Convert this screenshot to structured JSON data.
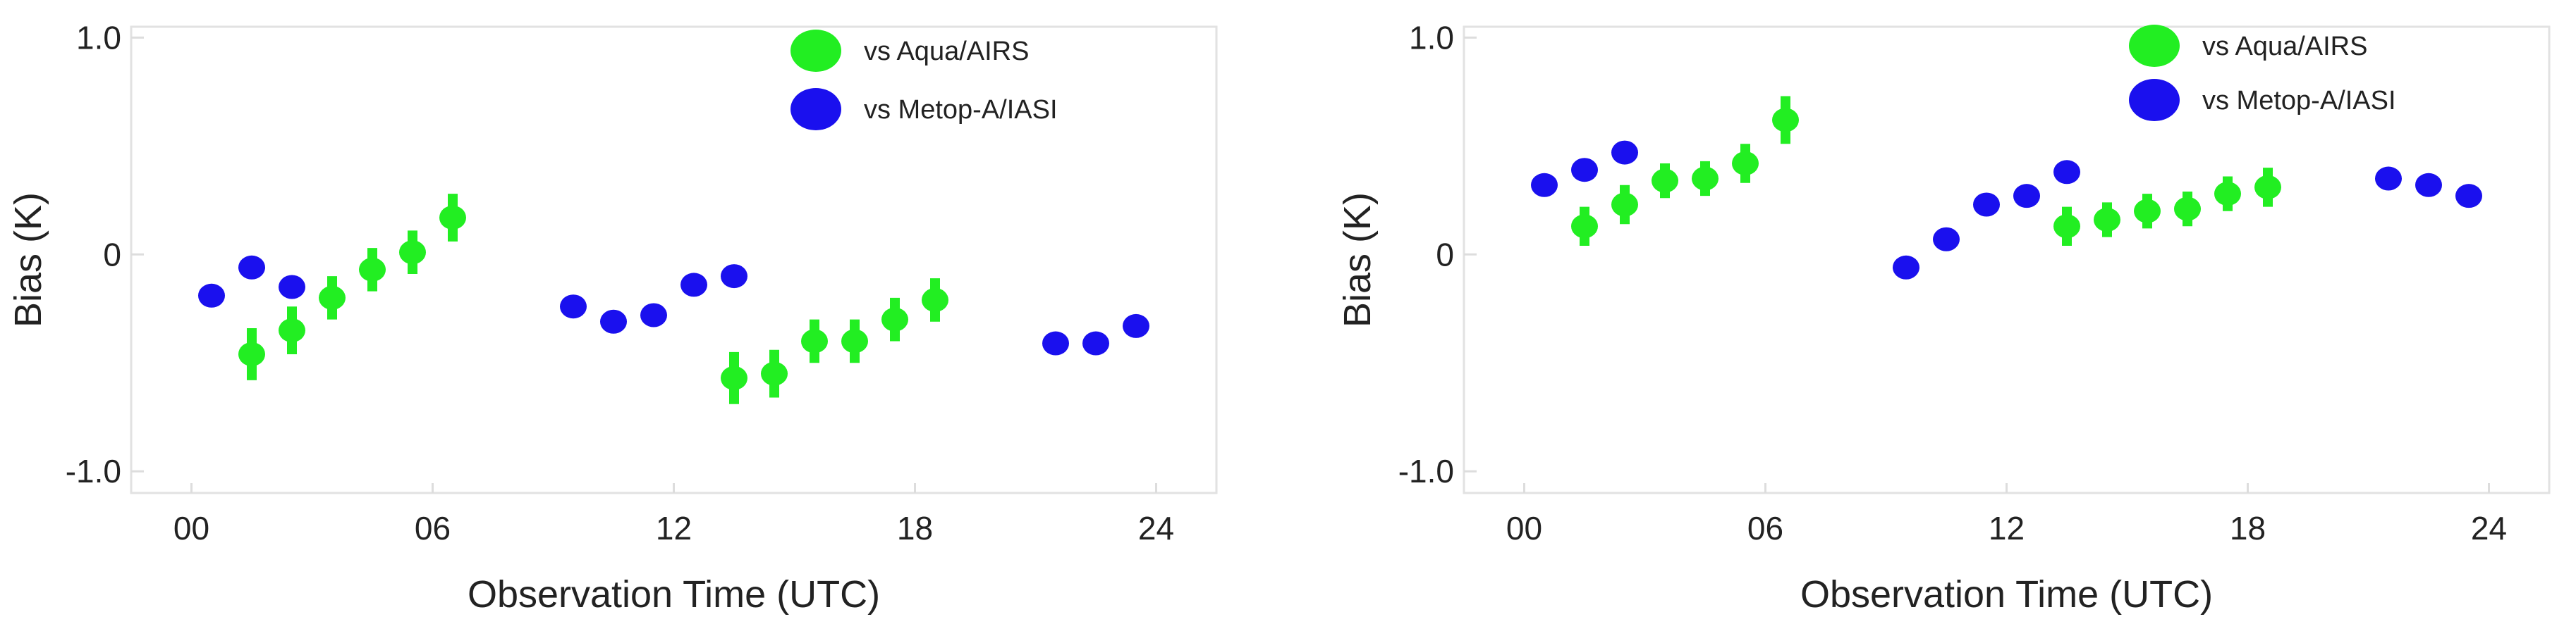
{
  "chart_data": [
    {
      "type": "scatter",
      "title": "",
      "xlabel": "Observation Time (UTC)",
      "ylabel": "Bias (K)",
      "xlim": [
        -1.5,
        25.5
      ],
      "ylim": [
        -1.1,
        1.05
      ],
      "x_ticks": [
        0,
        6,
        12,
        18,
        24
      ],
      "x_tick_labels": [
        "00",
        "06",
        "12",
        "18",
        "24"
      ],
      "y_ticks": [
        1.0,
        0,
        -1.0
      ],
      "y_tick_labels": [
        "1.0",
        "0",
        "-1.0"
      ],
      "grid": false,
      "legend_position": "top-right",
      "series": [
        {
          "name": "vs Aqua/AIRS",
          "color": "#22ee22",
          "error_bars": true,
          "x": [
            1.5,
            2.5,
            3.5,
            4.5,
            5.5,
            6.5,
            13.5,
            14.5,
            15.5,
            16.5,
            17.5,
            18.5
          ],
          "y": [
            -0.46,
            -0.35,
            -0.2,
            -0.07,
            0.01,
            0.17,
            -0.57,
            -0.55,
            -0.4,
            -0.4,
            -0.3,
            -0.21
          ],
          "err": [
            0.12,
            0.11,
            0.1,
            0.1,
            0.1,
            0.11,
            0.12,
            0.11,
            0.1,
            0.1,
            0.1,
            0.1
          ]
        },
        {
          "name": "vs Metop-A/IASI",
          "color": "#1a10ee",
          "error_bars": false,
          "x": [
            0.5,
            1.5,
            2.5,
            9.5,
            10.5,
            11.5,
            12.5,
            13.5,
            21.5,
            22.5,
            23.5
          ],
          "y": [
            -0.19,
            -0.06,
            -0.15,
            -0.24,
            -0.31,
            -0.28,
            -0.14,
            -0.1,
            -0.41,
            -0.41,
            -0.33
          ]
        }
      ]
    },
    {
      "type": "scatter",
      "title": "",
      "xlabel": "Observation Time (UTC)",
      "ylabel": "Bias (K)",
      "xlim": [
        -1.5,
        25.5
      ],
      "ylim": [
        -1.1,
        1.05
      ],
      "x_ticks": [
        0,
        6,
        12,
        18,
        24
      ],
      "x_tick_labels": [
        "00",
        "06",
        "12",
        "18",
        "24"
      ],
      "y_ticks": [
        1.0,
        0,
        -1.0
      ],
      "y_tick_labels": [
        "1.0",
        "0",
        "-1.0"
      ],
      "grid": false,
      "legend_position": "top-right",
      "series": [
        {
          "name": "vs Aqua/AIRS",
          "color": "#22ee22",
          "error_bars": true,
          "x": [
            1.5,
            2.5,
            3.5,
            4.5,
            5.5,
            6.5,
            13.5,
            14.5,
            15.5,
            16.5,
            17.5,
            18.5
          ],
          "y": [
            0.13,
            0.23,
            0.34,
            0.35,
            0.42,
            0.62,
            0.13,
            0.16,
            0.2,
            0.21,
            0.28,
            0.31
          ],
          "err": [
            0.09,
            0.09,
            0.08,
            0.08,
            0.09,
            0.11,
            0.09,
            0.08,
            0.08,
            0.08,
            0.08,
            0.09
          ]
        },
        {
          "name": "vs Metop-A/IASI",
          "color": "#1a10ee",
          "error_bars": false,
          "x": [
            0.5,
            1.5,
            2.5,
            9.5,
            10.5,
            11.5,
            12.5,
            13.5,
            21.5,
            22.5,
            23.5
          ],
          "y": [
            0.32,
            0.39,
            0.47,
            -0.06,
            0.07,
            0.23,
            0.27,
            0.38,
            0.35,
            0.32,
            0.27
          ]
        }
      ]
    }
  ]
}
